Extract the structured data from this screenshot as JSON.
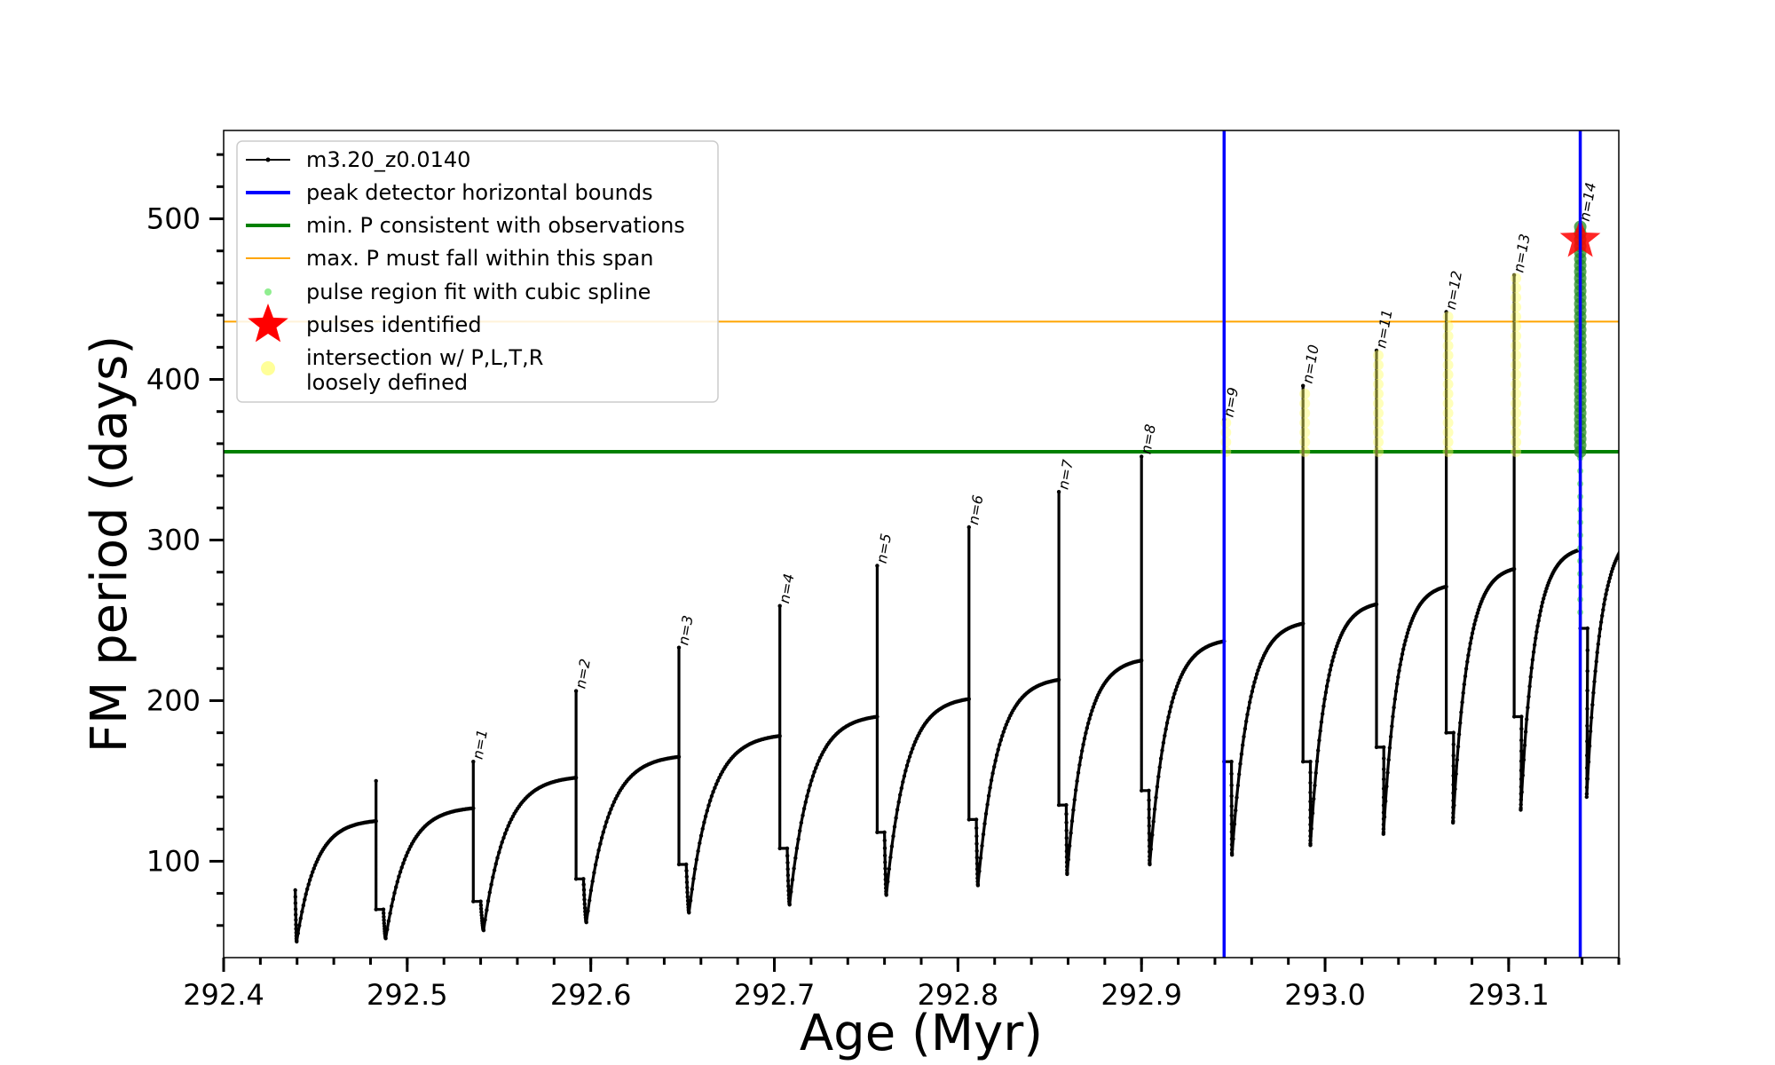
{
  "chart_data": {
    "type": "line",
    "title": "",
    "xlabel": "Age (Myr)",
    "ylabel": "FM period (days)",
    "xlim": [
      292.4,
      293.16
    ],
    "ylim": [
      40,
      555
    ],
    "x_ticks": [
      "292.4",
      "292.5",
      "292.6",
      "292.7",
      "292.8",
      "292.9",
      "293.0",
      "293.1"
    ],
    "x_tick_values": [
      292.4,
      292.5,
      292.6,
      292.7,
      292.8,
      292.9,
      293.0,
      293.1
    ],
    "y_ticks": [
      "100",
      "200",
      "300",
      "400",
      "500"
    ],
    "y_tick_values": [
      100,
      200,
      300,
      400,
      500
    ],
    "grid": false,
    "legend_position": "top-left",
    "legend": [
      {
        "label": "m3.20_z0.0140",
        "kind": "line-dot",
        "color": "#000000"
      },
      {
        "label": "peak detector horizontal bounds",
        "kind": "line",
        "color": "#0000ff"
      },
      {
        "label": "min. P consistent with observations",
        "kind": "line",
        "color": "#008000"
      },
      {
        "label": "max. P must fall within this span",
        "kind": "line",
        "color": "#ffa500"
      },
      {
        "label": "pulse region fit with cubic spline",
        "kind": "dot",
        "color": "#90ee90"
      },
      {
        "label": "pulses identified",
        "kind": "star",
        "color": "#ff0000"
      },
      {
        "label": "intersection w/ P,L,T,R",
        "label2": "loosely defined",
        "kind": "circle",
        "color": "#ffff99"
      }
    ],
    "vertical_lines": [
      292.945,
      293.139
    ],
    "vline_color": "#0000ff",
    "min_period_line": 355,
    "max_period_line": 436,
    "pulses_identified": [
      {
        "x": 293.139,
        "y": 487
      }
    ],
    "series": [
      {
        "name": "m3.20_z0.0140",
        "color": "#000000",
        "cycles": [
          {
            "x_start": 292.435,
            "x_spike": 292.483,
            "start_y": 82,
            "min_y": 50,
            "peak_y": 125,
            "spike_y": 150
          },
          {
            "x_start": 292.483,
            "x_spike": 292.536,
            "start_y": 70,
            "min_y": 52,
            "peak_y": 133,
            "spike_y": 162,
            "label": "n=1"
          },
          {
            "x_start": 292.536,
            "x_spike": 292.592,
            "start_y": 75,
            "min_y": 57,
            "peak_y": 152,
            "spike_y": 206,
            "label": "n=2"
          },
          {
            "x_start": 292.592,
            "x_spike": 292.648,
            "start_y": 89,
            "min_y": 62,
            "peak_y": 165,
            "spike_y": 233,
            "label": "n=3"
          },
          {
            "x_start": 292.648,
            "x_spike": 292.703,
            "start_y": 98,
            "min_y": 68,
            "peak_y": 178,
            "spike_y": 259,
            "label": "n=4"
          },
          {
            "x_start": 292.703,
            "x_spike": 292.756,
            "start_y": 108,
            "min_y": 73,
            "peak_y": 190,
            "spike_y": 284,
            "label": "n=5"
          },
          {
            "x_start": 292.756,
            "x_spike": 292.806,
            "start_y": 118,
            "min_y": 79,
            "peak_y": 201,
            "spike_y": 308,
            "label": "n=6"
          },
          {
            "x_start": 292.806,
            "x_spike": 292.855,
            "start_y": 126,
            "min_y": 85,
            "peak_y": 213,
            "spike_y": 330,
            "label": "n=7"
          },
          {
            "x_start": 292.855,
            "x_spike": 292.9,
            "start_y": 135,
            "min_y": 92,
            "peak_y": 225,
            "spike_y": 352,
            "label": "n=8"
          },
          {
            "x_start": 292.9,
            "x_spike": 292.945,
            "start_y": 144,
            "min_y": 98,
            "peak_y": 237,
            "spike_y": 375,
            "label": "n=9"
          },
          {
            "x_start": 292.945,
            "x_spike": 292.988,
            "start_y": 162,
            "min_y": 104,
            "peak_y": 248,
            "spike_y": 396,
            "label": "n=10"
          },
          {
            "x_start": 292.988,
            "x_spike": 293.028,
            "start_y": 162,
            "min_y": 110,
            "peak_y": 260,
            "spike_y": 418,
            "label": "n=11"
          },
          {
            "x_start": 293.028,
            "x_spike": 293.066,
            "start_y": 171,
            "min_y": 117,
            "peak_y": 271,
            "spike_y": 442,
            "label": "n=12"
          },
          {
            "x_start": 293.066,
            "x_spike": 293.103,
            "start_y": 180,
            "min_y": 124,
            "peak_y": 282,
            "spike_y": 465,
            "label": "n=13"
          },
          {
            "x_start": 293.103,
            "x_spike": 293.139,
            "start_y": 190,
            "min_y": 132,
            "peak_y": 294,
            "spike_y": 497,
            "label": "n=14"
          },
          {
            "x_start": 293.139,
            "x_end": 293.174,
            "start_y": 245,
            "min_y": 140,
            "peak_y": 305,
            "end_y": 300
          }
        ]
      }
    ]
  }
}
